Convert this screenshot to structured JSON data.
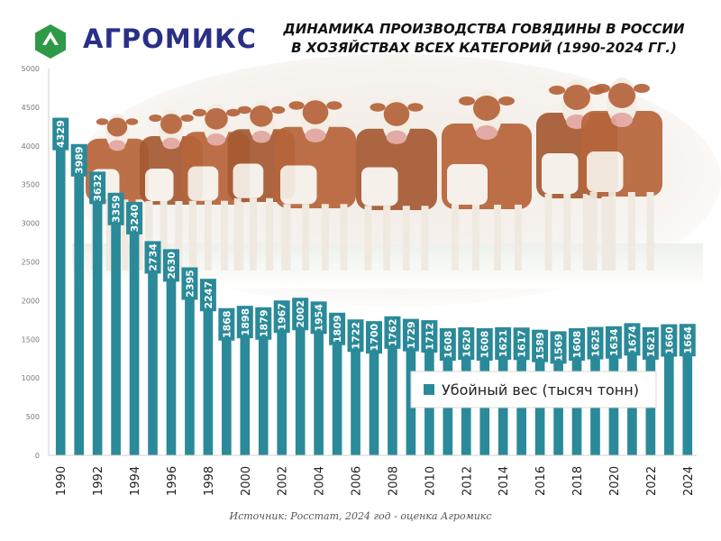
{
  "brand": {
    "name": "АГРОМИКС",
    "logo_icon": "green-hexagon-logo-icon"
  },
  "title_lines": [
    "ДИНАМИКА ПРОИЗВОДСТВА ГОВЯДИНЫ В РОССИИ",
    "В ХОЗЯЙСТВАХ ВСЕХ КАТЕГОРИЙ (1990-2024 ГГ.)"
  ],
  "source": "Источник: Росстат, 2024 год - оценка Агромикс",
  "background_image": "herd-of-cows-photo",
  "colors": {
    "bar": "#2a8a99",
    "brand": "#2a2f87",
    "logo": "#2e9a47"
  },
  "chart_data": {
    "type": "bar",
    "title": "ДИНАМИКА ПРОИЗВОДСТВА ГОВЯДИНЫ В РОССИИ В ХОЗЯЙСТВАХ ВСЕХ КАТЕГОРИЙ (1990-2024 ГГ.)",
    "categories": [
      "1990",
      "1991",
      "1992",
      "1993",
      "1994",
      "1995",
      "1996",
      "1997",
      "1998",
      "1999",
      "2000",
      "2001",
      "2002",
      "2003",
      "2004",
      "2005",
      "2006",
      "2007",
      "2008",
      "2009",
      "2010",
      "2011",
      "2012",
      "2013",
      "2014",
      "2015",
      "2016",
      "2017",
      "2018",
      "2019",
      "2020",
      "2021",
      "2022",
      "2023",
      "2024"
    ],
    "x_tick_labels": [
      "1990",
      "1992",
      "1994",
      "1996",
      "1998",
      "2000",
      "2002",
      "2004",
      "2006",
      "2008",
      "2010",
      "2012",
      "2014",
      "2016",
      "2018",
      "2020",
      "2022",
      "2024"
    ],
    "series": [
      {
        "name": "Убойный вес (тысяч тонн)",
        "values": [
          4329,
          3989,
          3632,
          3359,
          3240,
          2734,
          2630,
          2395,
          2247,
          1868,
          1898,
          1879,
          1967,
          2002,
          1954,
          1809,
          1722,
          1700,
          1762,
          1729,
          1712,
          1608,
          1620,
          1608,
          1621,
          1617,
          1589,
          1569,
          1608,
          1625,
          1634,
          1674,
          1621,
          1660,
          1664
        ]
      }
    ],
    "ylim": [
      0,
      5000
    ],
    "y_ticks": [
      0,
      500,
      1000,
      1500,
      2000,
      2500,
      3000,
      3500,
      4000,
      4500,
      5000
    ],
    "grid": false,
    "legend_position": "right-middle",
    "data_labels": true
  }
}
